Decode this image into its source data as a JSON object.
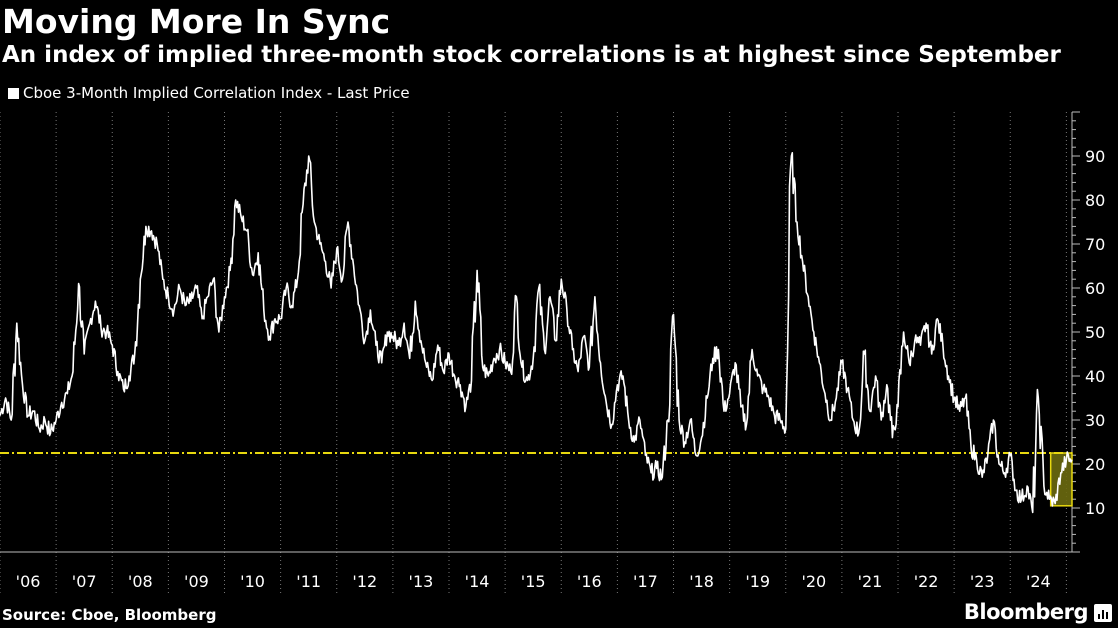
{
  "header": {
    "title": "Moving More In Sync",
    "subtitle": "An index of implied three-month stock correlations is at highest since September"
  },
  "legend": {
    "label": "Cboe 3-Month Implied Correlation Index - Last Price"
  },
  "footer": {
    "source": "Source: Cboe, Bloomberg",
    "brand": "Bloomberg"
  },
  "colors": {
    "background": "#000000",
    "line": "#ffffff",
    "reference_line": "#e8d80f",
    "highlight_fill": "#6b6a10",
    "highlight_border": "#e8d80f"
  },
  "chart_data": {
    "type": "line",
    "title": "Moving More In Sync",
    "subtitle": "An index of implied three-month stock correlations is at highest since September",
    "xlim": [
      2006.0,
      2025.1
    ],
    "ylim": [
      0,
      100
    ],
    "y_axis_position": "right",
    "x_ticks": [
      "'06",
      "'07",
      "'08",
      "'09",
      "'10",
      "'11",
      "'12",
      "'13",
      "'14",
      "'15",
      "'16",
      "'17",
      "'18",
      "'19",
      "'20",
      "'21",
      "'22",
      "'23",
      "'24"
    ],
    "y_ticks": [
      10,
      20,
      30,
      40,
      50,
      60,
      70,
      80,
      90
    ],
    "grid": "vertical dotted lines at year boundaries",
    "legend": "top-left",
    "reference_line": {
      "y": 22.5,
      "style": "dash-dot",
      "color": "#e8d80f"
    },
    "highlight_box": {
      "x0": 2024.72,
      "x1": 2025.1,
      "y0": 10.5,
      "y1": 22.5
    },
    "series": [
      {
        "name": "Cboe 3-Month Implied Correlation Index - Last Price",
        "points": [
          [
            2006.0,
            31
          ],
          [
            2006.1,
            35
          ],
          [
            2006.2,
            30
          ],
          [
            2006.3,
            52
          ],
          [
            2006.4,
            38
          ],
          [
            2006.5,
            31
          ],
          [
            2006.6,
            32
          ],
          [
            2006.7,
            28
          ],
          [
            2006.8,
            30
          ],
          [
            2006.9,
            27
          ],
          [
            2007.0,
            30
          ],
          [
            2007.1,
            34
          ],
          [
            2007.2,
            36
          ],
          [
            2007.3,
            41
          ],
          [
            2007.4,
            61
          ],
          [
            2007.5,
            45
          ],
          [
            2007.6,
            52
          ],
          [
            2007.7,
            57
          ],
          [
            2007.8,
            51
          ],
          [
            2007.9,
            50
          ],
          [
            2008.0,
            47
          ],
          [
            2008.1,
            41
          ],
          [
            2008.2,
            37
          ],
          [
            2008.3,
            40
          ],
          [
            2008.4,
            45
          ],
          [
            2008.5,
            62
          ],
          [
            2008.6,
            74
          ],
          [
            2008.7,
            73
          ],
          [
            2008.8,
            70
          ],
          [
            2008.9,
            62
          ],
          [
            2009.0,
            58
          ],
          [
            2009.1,
            55
          ],
          [
            2009.2,
            60
          ],
          [
            2009.3,
            56
          ],
          [
            2009.4,
            57
          ],
          [
            2009.5,
            60
          ],
          [
            2009.6,
            53
          ],
          [
            2009.7,
            58
          ],
          [
            2009.8,
            62
          ],
          [
            2009.9,
            50
          ],
          [
            2010.0,
            58
          ],
          [
            2010.1,
            64
          ],
          [
            2010.2,
            80
          ],
          [
            2010.3,
            76
          ],
          [
            2010.4,
            73
          ],
          [
            2010.5,
            63
          ],
          [
            2010.6,
            68
          ],
          [
            2010.7,
            55
          ],
          [
            2010.8,
            49
          ],
          [
            2010.9,
            53
          ],
          [
            2011.0,
            53
          ],
          [
            2011.1,
            60
          ],
          [
            2011.2,
            56
          ],
          [
            2011.3,
            62
          ],
          [
            2011.4,
            79
          ],
          [
            2011.5,
            90
          ],
          [
            2011.6,
            75
          ],
          [
            2011.7,
            70
          ],
          [
            2011.8,
            66
          ],
          [
            2011.9,
            60
          ],
          [
            2012.0,
            69
          ],
          [
            2012.1,
            62
          ],
          [
            2012.2,
            75
          ],
          [
            2012.3,
            65
          ],
          [
            2012.4,
            56
          ],
          [
            2012.5,
            48
          ],
          [
            2012.6,
            55
          ],
          [
            2012.7,
            47
          ],
          [
            2012.8,
            43
          ],
          [
            2012.9,
            50
          ],
          [
            2013.0,
            49
          ],
          [
            2013.1,
            47
          ],
          [
            2013.2,
            52
          ],
          [
            2013.3,
            44
          ],
          [
            2013.4,
            57
          ],
          [
            2013.5,
            48
          ],
          [
            2013.6,
            42
          ],
          [
            2013.7,
            39
          ],
          [
            2013.8,
            47
          ],
          [
            2013.9,
            41
          ],
          [
            2014.0,
            45
          ],
          [
            2014.1,
            40
          ],
          [
            2014.2,
            38
          ],
          [
            2014.3,
            33
          ],
          [
            2014.4,
            39
          ],
          [
            2014.5,
            64
          ],
          [
            2014.6,
            42
          ],
          [
            2014.7,
            40
          ],
          [
            2014.8,
            44
          ],
          [
            2014.9,
            46
          ],
          [
            2015.0,
            43
          ],
          [
            2015.1,
            41
          ],
          [
            2015.2,
            58
          ],
          [
            2015.3,
            42
          ],
          [
            2015.4,
            39
          ],
          [
            2015.5,
            44
          ],
          [
            2015.6,
            60
          ],
          [
            2015.7,
            46
          ],
          [
            2015.8,
            58
          ],
          [
            2015.9,
            48
          ],
          [
            2016.0,
            62
          ],
          [
            2016.1,
            55
          ],
          [
            2016.2,
            46
          ],
          [
            2016.3,
            41
          ],
          [
            2016.4,
            49
          ],
          [
            2016.5,
            42
          ],
          [
            2016.6,
            58
          ],
          [
            2016.7,
            43
          ],
          [
            2016.8,
            34
          ],
          [
            2016.9,
            29
          ],
          [
            2017.0,
            38
          ],
          [
            2017.1,
            40
          ],
          [
            2017.2,
            30
          ],
          [
            2017.3,
            25
          ],
          [
            2017.4,
            30
          ],
          [
            2017.5,
            22
          ],
          [
            2017.6,
            18
          ],
          [
            2017.7,
            19
          ],
          [
            2017.8,
            17
          ],
          [
            2017.9,
            30
          ],
          [
            2018.0,
            54
          ],
          [
            2018.1,
            30
          ],
          [
            2018.2,
            25
          ],
          [
            2018.3,
            30
          ],
          [
            2018.4,
            22
          ],
          [
            2018.5,
            26
          ],
          [
            2018.6,
            35
          ],
          [
            2018.7,
            44
          ],
          [
            2018.8,
            46
          ],
          [
            2018.9,
            32
          ],
          [
            2019.0,
            36
          ],
          [
            2019.1,
            43
          ],
          [
            2019.2,
            33
          ],
          [
            2019.3,
            29
          ],
          [
            2019.4,
            46
          ],
          [
            2019.5,
            40
          ],
          [
            2019.6,
            37
          ],
          [
            2019.7,
            35
          ],
          [
            2019.8,
            31
          ],
          [
            2019.9,
            30
          ],
          [
            2020.0,
            28
          ],
          [
            2020.1,
            90
          ],
          [
            2020.2,
            75
          ],
          [
            2020.3,
            66
          ],
          [
            2020.4,
            58
          ],
          [
            2020.5,
            50
          ],
          [
            2020.6,
            43
          ],
          [
            2020.7,
            36
          ],
          [
            2020.8,
            30
          ],
          [
            2020.9,
            35
          ],
          [
            2021.0,
            43
          ],
          [
            2021.1,
            37
          ],
          [
            2021.2,
            30
          ],
          [
            2021.3,
            27
          ],
          [
            2021.4,
            45
          ],
          [
            2021.5,
            32
          ],
          [
            2021.6,
            40
          ],
          [
            2021.7,
            30
          ],
          [
            2021.8,
            38
          ],
          [
            2021.9,
            26
          ],
          [
            2022.0,
            33
          ],
          [
            2022.1,
            50
          ],
          [
            2022.2,
            43
          ],
          [
            2022.3,
            48
          ],
          [
            2022.4,
            47
          ],
          [
            2022.5,
            52
          ],
          [
            2022.6,
            45
          ],
          [
            2022.7,
            53
          ],
          [
            2022.8,
            47
          ],
          [
            2022.9,
            40
          ],
          [
            2023.0,
            35
          ],
          [
            2023.1,
            32
          ],
          [
            2023.2,
            35
          ],
          [
            2023.3,
            24
          ],
          [
            2023.4,
            21
          ],
          [
            2023.5,
            17
          ],
          [
            2023.6,
            22
          ],
          [
            2023.7,
            30
          ],
          [
            2023.8,
            20
          ],
          [
            2023.9,
            18
          ],
          [
            2024.0,
            22
          ],
          [
            2024.1,
            14
          ],
          [
            2024.2,
            12
          ],
          [
            2024.3,
            15
          ],
          [
            2024.4,
            9
          ],
          [
            2024.5,
            35
          ],
          [
            2024.6,
            15
          ],
          [
            2024.7,
            12
          ],
          [
            2024.8,
            11
          ],
          [
            2024.9,
            18
          ],
          [
            2025.0,
            21
          ],
          [
            2025.1,
            21
          ]
        ]
      }
    ]
  }
}
